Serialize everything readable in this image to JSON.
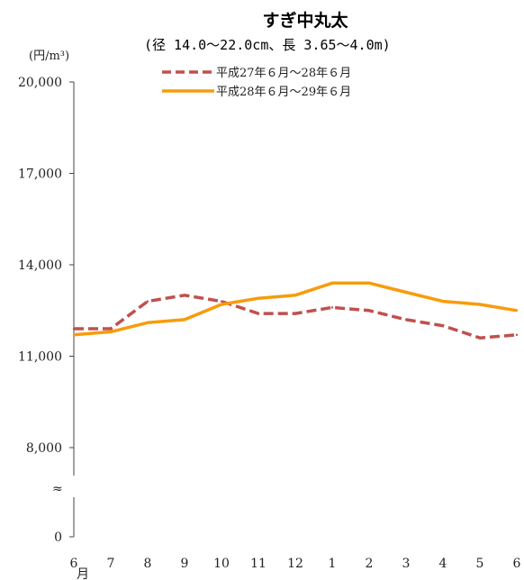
{
  "chart_data": {
    "type": "line",
    "title": "すぎ中丸太",
    "subtitle": "(径 14.0〜22.0cm、長 3.65〜4.0m)",
    "ylabel": "(円/m³)",
    "x_unit": "月",
    "categories": [
      "6",
      "7",
      "8",
      "9",
      "10",
      "11",
      "12",
      "1",
      "2",
      "3",
      "4",
      "5",
      "6"
    ],
    "y_ticks": [
      {
        "value": 0,
        "label": "0"
      },
      {
        "value": 8000,
        "label": "8,000"
      },
      {
        "value": 11000,
        "label": "11,000"
      },
      {
        "value": 14000,
        "label": "14,000"
      },
      {
        "value": 17000,
        "label": "17,000"
      },
      {
        "value": 20000,
        "label": "20,000"
      }
    ],
    "axis_break": "≈",
    "ylim": [
      8000,
      20000
    ],
    "legend_position": "top",
    "grid": false,
    "series": [
      {
        "name": "平成27年６月〜28年６月",
        "style": "dashed",
        "color": "#c0504d",
        "values": [
          11900,
          11900,
          12800,
          13000,
          12800,
          12400,
          12400,
          12600,
          12500,
          12200,
          12000,
          11600,
          11700
        ]
      },
      {
        "name": "平成28年６月〜29年６月",
        "style": "solid",
        "color": "#f79c0b",
        "values": [
          11700,
          11800,
          12100,
          12200,
          12700,
          12900,
          13000,
          13400,
          13400,
          13100,
          12800,
          12700,
          12500
        ]
      }
    ]
  }
}
